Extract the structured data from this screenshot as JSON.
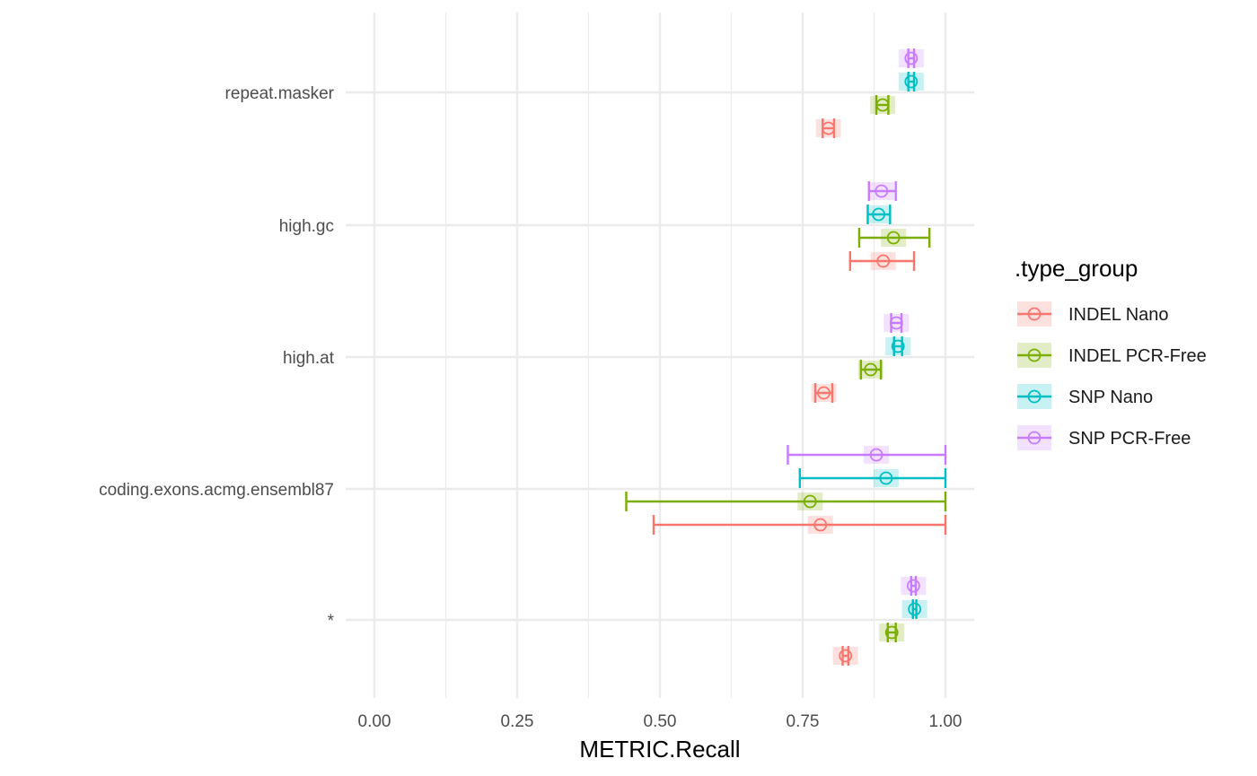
{
  "chart_data": {
    "type": "scatter",
    "xlabel": "METRIC.Recall",
    "xlim": [
      -0.05,
      1.05
    ],
    "x_ticks": [
      "0.00",
      "0.25",
      "0.50",
      "0.75",
      "1.00"
    ],
    "categories": [
      "repeat.masker",
      "high.gc",
      "high.at",
      "coding.exons.acmg.ensembl87",
      "*"
    ],
    "grid": true,
    "legend_title": ".type_group",
    "legend_position": "right",
    "series": [
      {
        "name": "INDEL Nano",
        "color": "#F8766D",
        "points": [
          {
            "category": "repeat.masker",
            "value": 0.795,
            "low": 0.785,
            "high": 0.805
          },
          {
            "category": "high.gc",
            "value": 0.891,
            "low": 0.833,
            "high": 0.945
          },
          {
            "category": "high.at",
            "value": 0.787,
            "low": 0.772,
            "high": 0.802
          },
          {
            "category": "coding.exons.acmg.ensembl87",
            "value": 0.781,
            "low": 0.489,
            "high": 1.0
          },
          {
            "category": "*",
            "value": 0.825,
            "low": 0.82,
            "high": 0.83
          }
        ]
      },
      {
        "name": "INDEL PCR-Free",
        "color": "#7CAE00",
        "points": [
          {
            "category": "repeat.masker",
            "value": 0.89,
            "low": 0.879,
            "high": 0.9
          },
          {
            "category": "high.gc",
            "value": 0.909,
            "low": 0.849,
            "high": 0.972
          },
          {
            "category": "high.at",
            "value": 0.869,
            "low": 0.852,
            "high": 0.887
          },
          {
            "category": "coding.exons.acmg.ensembl87",
            "value": 0.763,
            "low": 0.441,
            "high": 1.0
          },
          {
            "category": "*",
            "value": 0.906,
            "low": 0.899,
            "high": 0.913
          }
        ]
      },
      {
        "name": "SNP Nano",
        "color": "#00BFC4",
        "points": [
          {
            "category": "repeat.masker",
            "value": 0.94,
            "low": 0.935,
            "high": 0.945
          },
          {
            "category": "high.gc",
            "value": 0.883,
            "low": 0.864,
            "high": 0.903
          },
          {
            "category": "high.at",
            "value": 0.917,
            "low": 0.91,
            "high": 0.924
          },
          {
            "category": "coding.exons.acmg.ensembl87",
            "value": 0.896,
            "low": 0.745,
            "high": 1.0
          },
          {
            "category": "*",
            "value": 0.946,
            "low": 0.943,
            "high": 0.949
          }
        ]
      },
      {
        "name": "SNP PCR-Free",
        "color": "#C77CFF",
        "points": [
          {
            "category": "repeat.masker",
            "value": 0.94,
            "low": 0.935,
            "high": 0.945
          },
          {
            "category": "high.gc",
            "value": 0.888,
            "low": 0.866,
            "high": 0.913
          },
          {
            "category": "high.at",
            "value": 0.914,
            "low": 0.905,
            "high": 0.923
          },
          {
            "category": "coding.exons.acmg.ensembl87",
            "value": 0.879,
            "low": 0.724,
            "high": 1.0
          },
          {
            "category": "*",
            "value": 0.944,
            "low": 0.94,
            "high": 0.948
          }
        ]
      }
    ]
  }
}
